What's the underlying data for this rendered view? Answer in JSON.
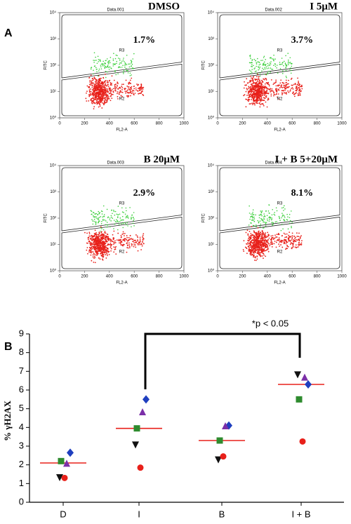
{
  "panels": {
    "a": "A",
    "b": "B"
  },
  "chart_data": [
    {
      "type": "flow",
      "title": "DMSO",
      "header": "Data.001",
      "annotation": "1.7%",
      "gates": [
        "R3",
        "R2"
      ],
      "xlabel": "FL2-A",
      "ylabel": "FITC",
      "xlim": [
        0,
        1000
      ],
      "xticks": [
        0,
        200,
        400,
        600,
        800,
        1000
      ],
      "ylog": true,
      "ylim": [
        1,
        10000
      ],
      "yticks": [
        {
          "value": 1,
          "label": "10⁰"
        },
        {
          "value": 10,
          "label": "10¹"
        },
        {
          "value": 100,
          "label": "10²"
        },
        {
          "value": 1000,
          "label": "10³"
        },
        {
          "value": 10000,
          "label": "10⁴"
        }
      ]
    },
    {
      "type": "flow",
      "title": "I 5μM",
      "header": "Data.002",
      "annotation": "3.7%",
      "gates": [
        "R3",
        "R2"
      ],
      "xlabel": "FL2-A",
      "ylabel": "FITC",
      "xlim": [
        0,
        1000
      ],
      "xticks": [
        0,
        200,
        400,
        600,
        800,
        1000
      ],
      "ylog": true,
      "ylim": [
        1,
        10000
      ],
      "yticks": [
        {
          "value": 1,
          "label": "10⁰"
        },
        {
          "value": 10,
          "label": "10¹"
        },
        {
          "value": 100,
          "label": "10²"
        },
        {
          "value": 1000,
          "label": "10³"
        },
        {
          "value": 10000,
          "label": "10⁴"
        }
      ]
    },
    {
      "type": "flow",
      "title": "B 20μM",
      "header": "Data.003",
      "annotation": "2.9%",
      "gates": [
        "R3",
        "R2"
      ],
      "xlabel": "FL2-A",
      "ylabel": "FITC",
      "xlim": [
        0,
        1000
      ],
      "xticks": [
        0,
        200,
        400,
        600,
        800,
        1000
      ],
      "ylog": true,
      "ylim": [
        1,
        10000
      ],
      "yticks": [
        {
          "value": 1,
          "label": "10⁰"
        },
        {
          "value": 10,
          "label": "10¹"
        },
        {
          "value": 100,
          "label": "10²"
        },
        {
          "value": 1000,
          "label": "10³"
        },
        {
          "value": 10000,
          "label": "10⁴"
        }
      ]
    },
    {
      "type": "flow",
      "title": "I + B 5+20μM",
      "header": "Data.004",
      "annotation": "8.1%",
      "gates": [
        "R3",
        "R2"
      ],
      "xlabel": "FL2-A",
      "ylabel": "FITC",
      "xlim": [
        0,
        1000
      ],
      "xticks": [
        0,
        200,
        400,
        600,
        800,
        1000
      ],
      "ylog": true,
      "ylim": [
        1,
        10000
      ],
      "yticks": [
        {
          "value": 1,
          "label": "10⁰"
        },
        {
          "value": 10,
          "label": "10¹"
        },
        {
          "value": 100,
          "label": "10²"
        },
        {
          "value": 1000,
          "label": "10³"
        },
        {
          "value": 10000,
          "label": "10⁴"
        }
      ]
    },
    {
      "type": "scatter",
      "categories": [
        "D",
        "I",
        "B",
        "I + B"
      ],
      "ylabel": "% γH2AX",
      "annotation": "*p < 0.05",
      "ylim": [
        0,
        9
      ],
      "yticks": [
        0,
        1,
        2,
        3,
        4,
        5,
        6,
        7,
        8,
        9
      ],
      "series": [
        {
          "color": "#1f3fbf",
          "marker": "diamond",
          "values": [
            2.65,
            5.5,
            4.1,
            6.3
          ]
        },
        {
          "color": "#7b2fa8",
          "marker": "triangle",
          "values": [
            2.05,
            4.8,
            4.05,
            6.65
          ]
        },
        {
          "color": "#2e8b2e",
          "marker": "square",
          "values": [
            2.2,
            3.95,
            3.3,
            5.5
          ]
        },
        {
          "color": "#111111",
          "marker": "triangle-down",
          "values": [
            1.35,
            3.1,
            2.3,
            6.85
          ]
        },
        {
          "color": "#e8201a",
          "marker": "circle",
          "values": [
            1.3,
            1.85,
            2.45,
            3.25
          ]
        }
      ],
      "means": {
        "color": "#e8201a",
        "values": [
          2.1,
          3.95,
          3.3,
          6.3
        ]
      }
    }
  ]
}
